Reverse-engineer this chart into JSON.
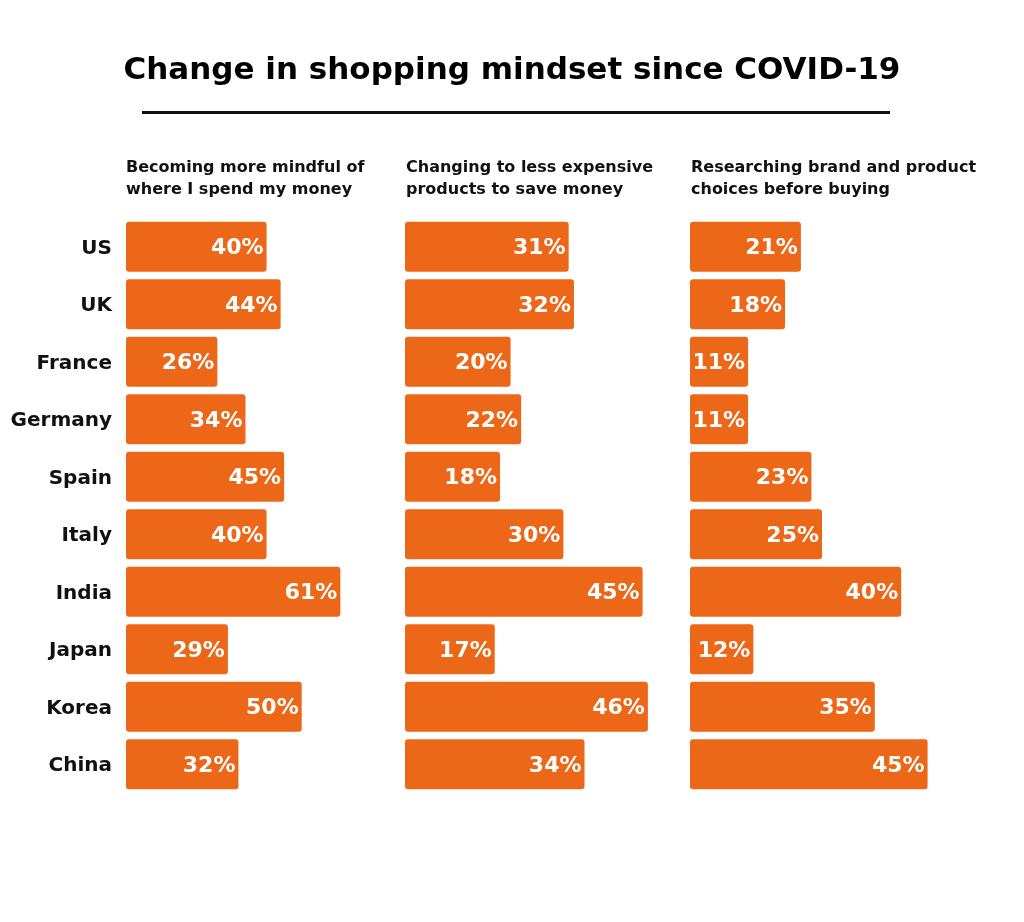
{
  "chart_data": [
    {
      "type": "bar",
      "orientation": "horizontal",
      "title": "Change in shopping mindset since COVID-19",
      "subtitle": "Becoming more mindful of where I spend my money",
      "categories": [
        "US",
        "UK",
        "France",
        "Germany",
        "Spain",
        "Italy",
        "India",
        "Japan",
        "Korea",
        "China"
      ],
      "values": [
        40,
        44,
        26,
        34,
        45,
        40,
        61,
        29,
        50,
        32
      ],
      "value_labels": [
        "40%",
        "44%",
        "26%",
        "34%",
        "45%",
        "40%",
        "61%",
        "29%",
        "50%",
        "32%"
      ],
      "color": "#ec6718",
      "tick_labels": "y"
    },
    {
      "type": "bar",
      "orientation": "horizontal",
      "subtitle": "Changing to less expensive products to save money",
      "categories": [
        null,
        null,
        null,
        null,
        null,
        null,
        null,
        null,
        null,
        null
      ],
      "values": [
        31,
        32,
        20,
        22,
        18,
        30,
        45,
        17,
        46,
        34
      ],
      "value_labels": [
        "31%",
        "32%",
        "20%",
        "22%",
        "18%",
        "30%",
        "45%",
        "17%",
        "46%",
        "34%"
      ],
      "color": "#ec6718",
      "tick_labels": false
    },
    {
      "type": "bar",
      "orientation": "horizontal",
      "subtitle": "Researching brand and product choices before buying",
      "categories": [
        null,
        null,
        null,
        null,
        null,
        null,
        null,
        null,
        null,
        null
      ],
      "values": [
        21,
        18,
        11,
        11,
        23,
        25,
        40,
        12,
        35,
        45
      ],
      "value_labels": [
        "21%",
        "18%",
        "11%",
        "11%",
        "23%",
        "25%",
        "40%",
        "12%",
        "35%",
        "45%"
      ],
      "color": "#ec6718",
      "tick_labels": false
    }
  ]
}
